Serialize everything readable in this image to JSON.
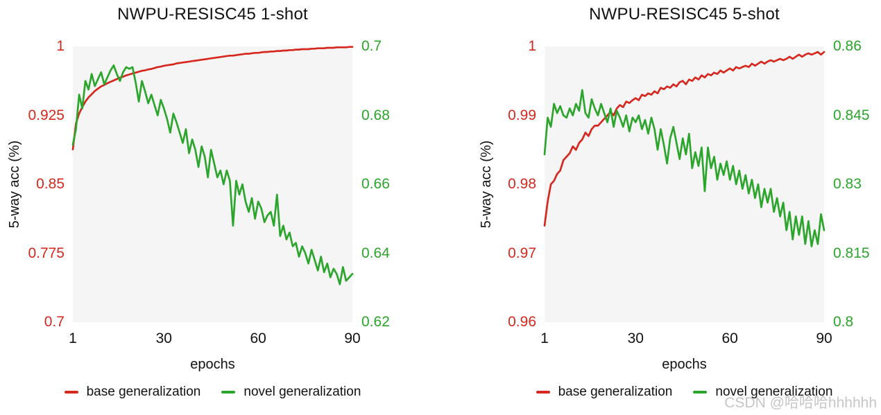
{
  "page": {
    "watermark": "CSDN @哈哈哈hhhhhh",
    "background": "#ffffff"
  },
  "colors": {
    "base_line": "#d6281e",
    "novel_line": "#2ba52b",
    "plot_background": "#f5f5f5",
    "axis_text": "#111111",
    "watermark_text": "#bdbdbd"
  },
  "chart_data": [
    {
      "type": "line",
      "title": "NWPU-RESISC45 1-shot",
      "xlabel": "epochs",
      "ylabel": "5-way acc (%)",
      "x_range": [
        1,
        90
      ],
      "x_step": 1,
      "x_ticks": [
        1,
        30,
        60,
        90
      ],
      "grid": false,
      "legend_position": "bottom",
      "left_axis": {
        "color": "#d6281e",
        "range": [
          0.7,
          1.0
        ],
        "ticks": [
          "1",
          "0.925",
          "0.85",
          "0.775",
          "0.7"
        ]
      },
      "right_axis": {
        "color": "#2ba52b",
        "range": [
          0.62,
          0.7
        ],
        "ticks": [
          "0.7",
          "0.68",
          "0.66",
          "0.64",
          "0.62"
        ]
      },
      "series": [
        {
          "name": "base generalization",
          "axis": "left",
          "color": "#d6281e",
          "values": [
            0.888,
            0.916,
            0.927,
            0.934,
            0.94,
            0.9445,
            0.948,
            0.9515,
            0.954,
            0.9565,
            0.958,
            0.96,
            0.9615,
            0.963,
            0.9645,
            0.966,
            0.967,
            0.9685,
            0.9695,
            0.9705,
            0.9715,
            0.9725,
            0.9735,
            0.974,
            0.975,
            0.9755,
            0.9765,
            0.9775,
            0.978,
            0.979,
            0.9795,
            0.98,
            0.9805,
            0.9815,
            0.982,
            0.9825,
            0.983,
            0.9835,
            0.984,
            0.9845,
            0.985,
            0.9855,
            0.986,
            0.9865,
            0.987,
            0.9875,
            0.988,
            0.9885,
            0.989,
            0.9895,
            0.99,
            0.99,
            0.9905,
            0.991,
            0.9915,
            0.992,
            0.992,
            0.9925,
            0.993,
            0.993,
            0.9935,
            0.994,
            0.994,
            0.9945,
            0.9945,
            0.995,
            0.995,
            0.9955,
            0.9955,
            0.996,
            0.996,
            0.9965,
            0.9965,
            0.997,
            0.997,
            0.997,
            0.9975,
            0.9975,
            0.998,
            0.998,
            0.998,
            0.9985,
            0.9985,
            0.9985,
            0.999,
            0.999,
            0.999,
            0.999,
            0.9995,
            0.9995
          ]
        },
        {
          "name": "novel generalization",
          "axis": "right",
          "color": "#2ba52b",
          "values": [
            0.6715,
            0.676,
            0.686,
            0.682,
            0.69,
            0.6875,
            0.692,
            0.6885,
            0.6905,
            0.6925,
            0.689,
            0.691,
            0.693,
            0.6945,
            0.692,
            0.69,
            0.6925,
            0.694,
            0.6935,
            0.694,
            0.6895,
            0.684,
            0.69,
            0.687,
            0.6835,
            0.686,
            0.683,
            0.68,
            0.6845,
            0.682,
            0.679,
            0.675,
            0.6805,
            0.678,
            0.675,
            0.672,
            0.676,
            0.669,
            0.673,
            0.67,
            0.665,
            0.671,
            0.668,
            0.662,
            0.67,
            0.666,
            0.662,
            0.664,
            0.66,
            0.664,
            0.661,
            0.648,
            0.661,
            0.657,
            0.66,
            0.655,
            0.652,
            0.656,
            0.65,
            0.655,
            0.653,
            0.649,
            0.651,
            0.652,
            0.648,
            0.657,
            0.645,
            0.648,
            0.644,
            0.646,
            0.642,
            0.643,
            0.639,
            0.642,
            0.64,
            0.637,
            0.641,
            0.638,
            0.635,
            0.639,
            0.6345,
            0.637,
            0.633,
            0.6355,
            0.634,
            0.631,
            0.636,
            0.632,
            0.633,
            0.634
          ]
        }
      ]
    },
    {
      "type": "line",
      "title": "NWPU-RESISC45 5-shot",
      "xlabel": "epochs",
      "ylabel": "5-way acc (%)",
      "x_range": [
        1,
        90
      ],
      "x_step": 1,
      "x_ticks": [
        1,
        30,
        60,
        90
      ],
      "grid": false,
      "legend_position": "bottom",
      "left_axis": {
        "color": "#d6281e",
        "range": [
          0.96,
          1.0
        ],
        "ticks": [
          "1",
          "0.99",
          "0.98",
          "0.97",
          "0.96"
        ]
      },
      "right_axis": {
        "color": "#2ba52b",
        "range": [
          0.8,
          0.86
        ],
        "ticks": [
          "0.86",
          "0.845",
          "0.83",
          "0.815",
          "0.8"
        ]
      },
      "series": [
        {
          "name": "base generalization",
          "axis": "left",
          "color": "#d6281e",
          "values": [
            0.974,
            0.9775,
            0.98,
            0.9805,
            0.9815,
            0.982,
            0.9835,
            0.984,
            0.9845,
            0.9855,
            0.985,
            0.986,
            0.9865,
            0.9875,
            0.987,
            0.988,
            0.9885,
            0.9885,
            0.989,
            0.9895,
            0.99,
            0.9905,
            0.99,
            0.991,
            0.9915,
            0.9912,
            0.992,
            0.9918,
            0.9922,
            0.9925,
            0.9922,
            0.993,
            0.9928,
            0.9932,
            0.993,
            0.9935,
            0.9932,
            0.994,
            0.9938,
            0.9942,
            0.994,
            0.9945,
            0.9942,
            0.9948,
            0.995,
            0.9945,
            0.9952,
            0.995,
            0.9955,
            0.9952,
            0.9958,
            0.9955,
            0.996,
            0.9958,
            0.9962,
            0.996,
            0.9965,
            0.9962,
            0.9965,
            0.9968,
            0.9965,
            0.997,
            0.9968,
            0.997,
            0.9972,
            0.997,
            0.9975,
            0.9972,
            0.9975,
            0.9978,
            0.9975,
            0.9978,
            0.998,
            0.9978,
            0.998,
            0.9982,
            0.998,
            0.9982,
            0.9985,
            0.9982,
            0.9985,
            0.9988,
            0.9985,
            0.9988,
            0.999,
            0.9988,
            0.999,
            0.9992,
            0.9988,
            0.9992
          ]
        },
        {
          "name": "novel generalization",
          "axis": "right",
          "color": "#2ba52b",
          "values": [
            0.8365,
            0.8445,
            0.8425,
            0.8475,
            0.8455,
            0.847,
            0.845,
            0.8445,
            0.8465,
            0.845,
            0.8475,
            0.846,
            0.8505,
            0.8455,
            0.8445,
            0.8485,
            0.8465,
            0.845,
            0.8475,
            0.8455,
            0.8435,
            0.8465,
            0.8425,
            0.846,
            0.8445,
            0.8425,
            0.845,
            0.8415,
            0.8445,
            0.8435,
            0.845,
            0.842,
            0.844,
            0.841,
            0.8445,
            0.842,
            0.8375,
            0.842,
            0.8385,
            0.8345,
            0.84,
            0.8425,
            0.839,
            0.8355,
            0.84,
            0.8365,
            0.841,
            0.8335,
            0.837,
            0.834,
            0.838,
            0.8285,
            0.838,
            0.8335,
            0.836,
            0.831,
            0.8345,
            0.832,
            0.835,
            0.831,
            0.834,
            0.83,
            0.833,
            0.829,
            0.832,
            0.828,
            0.831,
            0.827,
            0.83,
            0.825,
            0.829,
            0.826,
            0.829,
            0.824,
            0.827,
            0.823,
            0.826,
            0.82,
            0.824,
            0.818,
            0.823,
            0.819,
            0.823,
            0.817,
            0.822,
            0.8165,
            0.82,
            0.817,
            0.8235,
            0.82
          ]
        }
      ]
    }
  ]
}
